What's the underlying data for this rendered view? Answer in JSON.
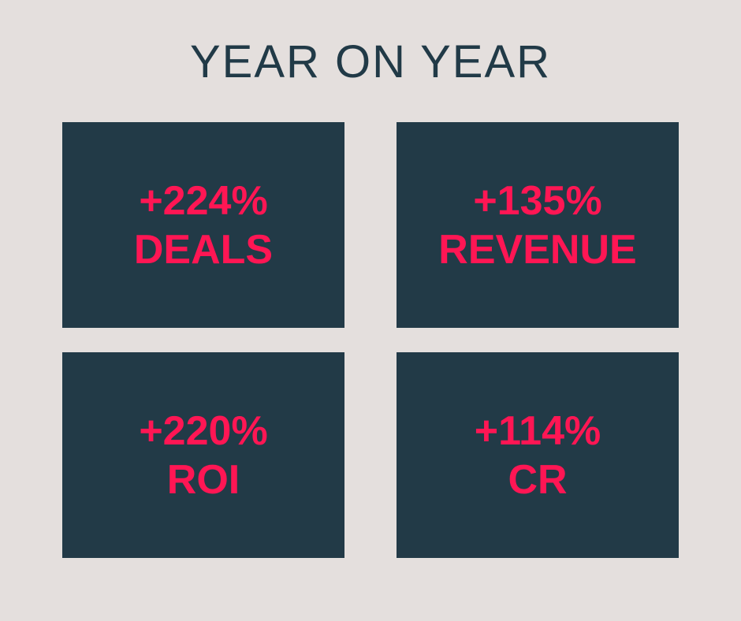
{
  "header": {
    "title": "YEAR ON YEAR"
  },
  "cards": [
    {
      "value": "+224%",
      "label": "DEALS"
    },
    {
      "value": "+135%",
      "label": "REVENUE"
    },
    {
      "value": "+220%",
      "label": "ROI"
    },
    {
      "value": "+114%",
      "label": "CR"
    }
  ]
}
